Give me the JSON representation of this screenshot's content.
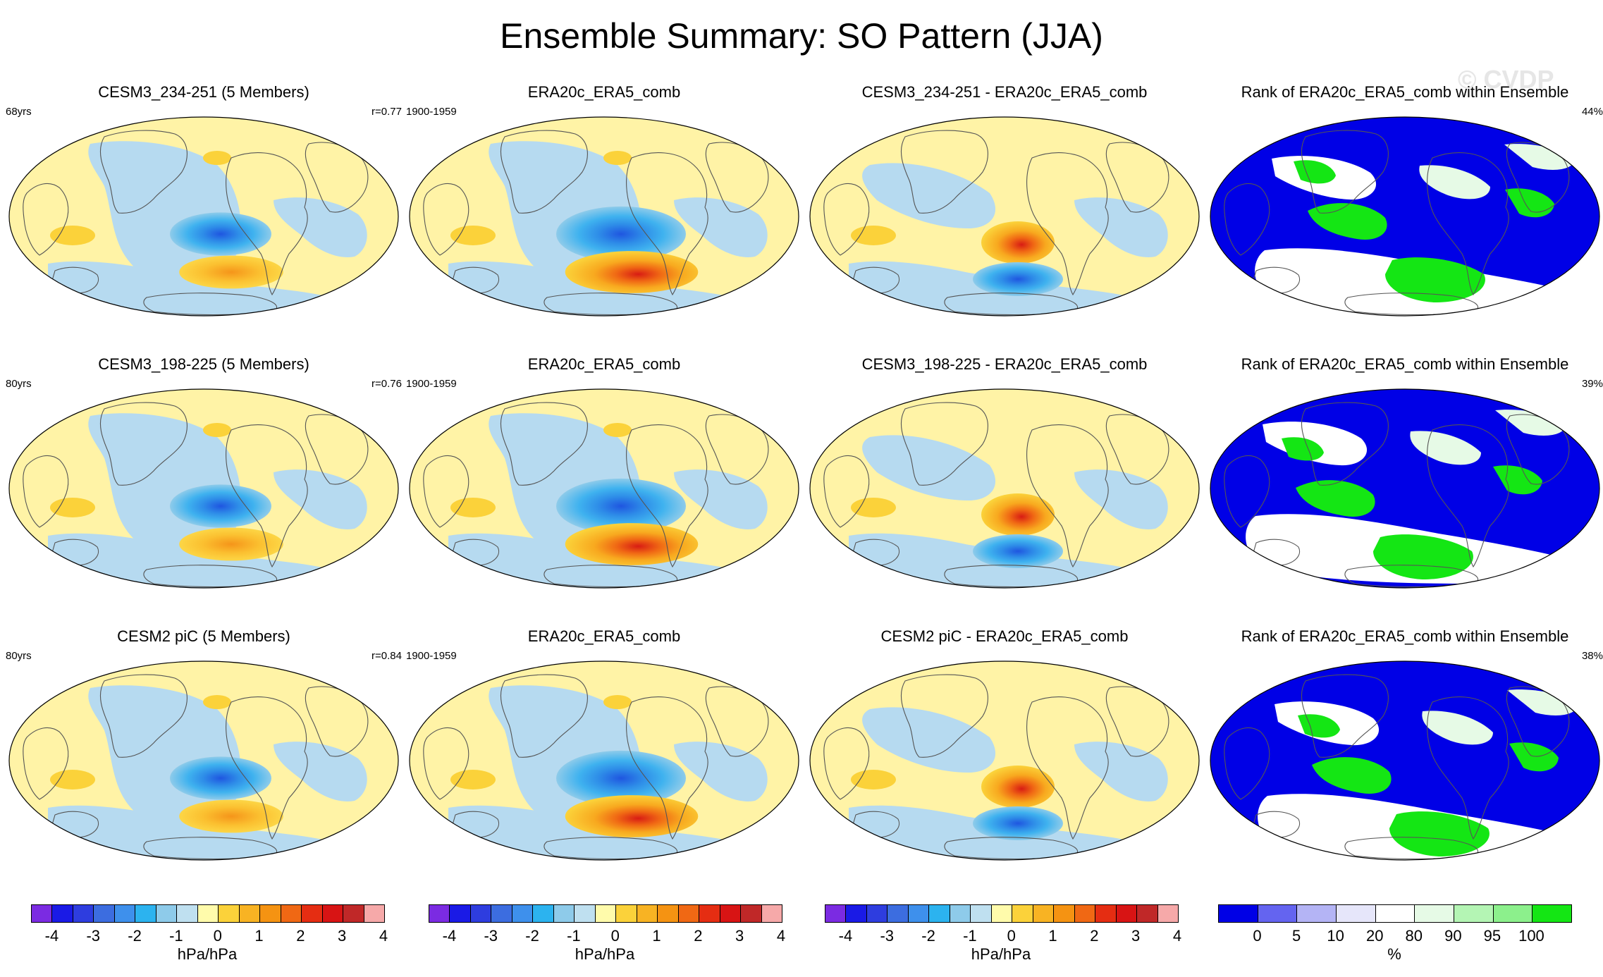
{
  "title": "Ensemble Summary: SO Pattern (JJA)",
  "watermark": "© CVDP",
  "rows": [
    {
      "panels": [
        {
          "title": "CESM3_234-251 (5 Members)",
          "left": "68yrs",
          "right": "r=0.77"
        },
        {
          "title": "ERA20c_ERA5_comb",
          "left": "1900-1959",
          "right": ""
        },
        {
          "title": "CESM3_234-251 - ERA20c_ERA5_comb",
          "left": "",
          "right": ""
        },
        {
          "title": "Rank of ERA20c_ERA5_comb within Ensemble",
          "left": "",
          "right": "44%"
        }
      ]
    },
    {
      "panels": [
        {
          "title": "CESM3_198-225 (5 Members)",
          "left": "80yrs",
          "right": "r=0.76"
        },
        {
          "title": "ERA20c_ERA5_comb",
          "left": "1900-1959",
          "right": ""
        },
        {
          "title": "CESM3_198-225 - ERA20c_ERA5_comb",
          "left": "",
          "right": ""
        },
        {
          "title": "Rank of ERA20c_ERA5_comb within Ensemble",
          "left": "",
          "right": "39%"
        }
      ]
    },
    {
      "panels": [
        {
          "title": "CESM2 piC (5 Members)",
          "left": "80yrs",
          "right": "r=0.84"
        },
        {
          "title": "ERA20c_ERA5_comb",
          "left": "1900-1959",
          "right": ""
        },
        {
          "title": "CESM2 piC - ERA20c_ERA5_comb",
          "left": "",
          "right": ""
        },
        {
          "title": "Rank of ERA20c_ERA5_comb within Ensemble",
          "left": "",
          "right": "38%"
        }
      ]
    }
  ],
  "colorbars": [
    {
      "unit": "hPa/hPa",
      "colors": [
        "#7b2be2",
        "#1a1ae6",
        "#2e3ddf",
        "#3c6de0",
        "#3e90ec",
        "#2cb3ef",
        "#8ecbea",
        "#bfe0f0",
        "#fffbab",
        "#fbd23a",
        "#f8b323",
        "#f59312",
        "#f06814",
        "#e52d12",
        "#d81414",
        "#c02828",
        "#f6a9a9"
      ],
      "ticks": [
        "-4",
        "-3",
        "-2",
        "-1",
        "0",
        "1",
        "2",
        "3",
        "4"
      ]
    },
    {
      "unit": "hPa/hPa",
      "colors": [
        "#7b2be2",
        "#1a1ae6",
        "#2e3ddf",
        "#3c6de0",
        "#3e90ec",
        "#2cb3ef",
        "#8ecbea",
        "#bfe0f0",
        "#fffbab",
        "#fbd23a",
        "#f8b323",
        "#f59312",
        "#f06814",
        "#e52d12",
        "#d81414",
        "#c02828",
        "#f6a9a9"
      ],
      "ticks": [
        "-4",
        "-3",
        "-2",
        "-1",
        "0",
        "1",
        "2",
        "3",
        "4"
      ]
    },
    {
      "unit": "hPa/hPa",
      "colors": [
        "#7b2be2",
        "#1a1ae6",
        "#2e3ddf",
        "#3c6de0",
        "#3e90ec",
        "#2cb3ef",
        "#8ecbea",
        "#bfe0f0",
        "#fffbab",
        "#fbd23a",
        "#f8b323",
        "#f59312",
        "#f06814",
        "#e52d12",
        "#d81414",
        "#c02828",
        "#f6a9a9"
      ],
      "ticks": [
        "-4",
        "-3",
        "-2",
        "-1",
        "0",
        "1",
        "2",
        "3",
        "4"
      ]
    },
    {
      "unit": "%",
      "colors": [
        "#0000e6",
        "#6464f0",
        "#b4b4f5",
        "#e6e6fa",
        "#ffffff",
        "#e6fae6",
        "#b4f5b4",
        "#8cf08c",
        "#14e614"
      ],
      "ticks": [
        "0",
        "5",
        "10",
        "20",
        "80",
        "90",
        "95",
        "100"
      ]
    }
  ],
  "colors": {
    "land_outline": "#555555",
    "pos_bg": "#fff3a6",
    "neg_bg": "#b6daf0",
    "rank_low": "#0000e6",
    "rank_high": "#14e614"
  }
}
